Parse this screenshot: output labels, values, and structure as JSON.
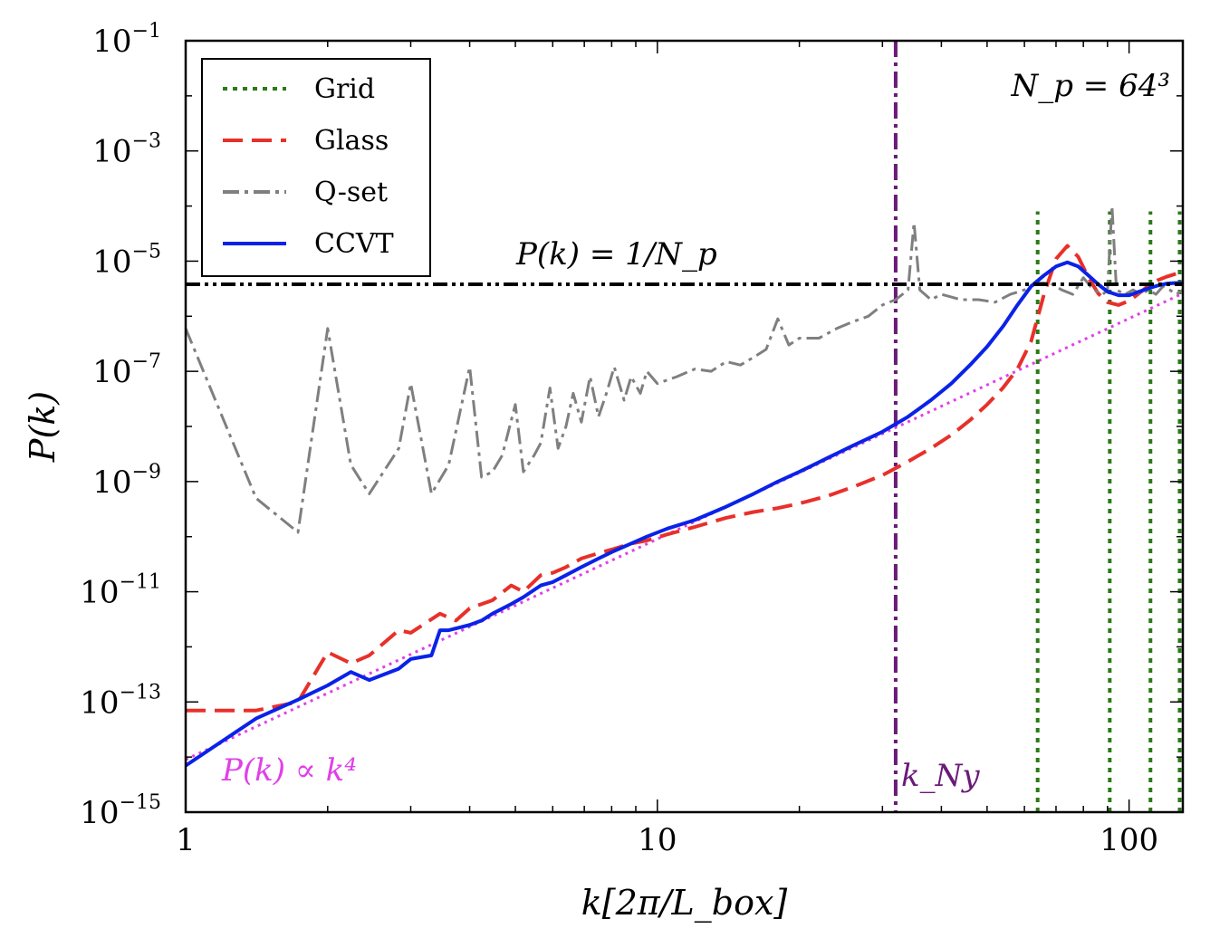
{
  "chart_data": {
    "type": "line",
    "xlabel": "k[2π/L_box]",
    "ylabel": "P(k)",
    "xscale": "log",
    "yscale": "log",
    "xlim": [
      1,
      130
    ],
    "ylim": [
      1e-15,
      0.1
    ],
    "grid": false,
    "legend_position": "top-left",
    "x_ticks": [
      {
        "value": 1,
        "label": "1"
      },
      {
        "value": 10,
        "label": "10"
      },
      {
        "value": 100,
        "label": "100"
      }
    ],
    "y_ticks": [
      {
        "value": 1e-15,
        "base": "10",
        "exp": "−15"
      },
      {
        "value": 1e-13,
        "base": "10",
        "exp": "−13"
      },
      {
        "value": 1e-11,
        "base": "10",
        "exp": "−11"
      },
      {
        "value": 1e-09,
        "base": "10",
        "exp": "−9"
      },
      {
        "value": 1e-07,
        "base": "10",
        "exp": "−7"
      },
      {
        "value": 1e-05,
        "base": "10",
        "exp": "−5"
      },
      {
        "value": 0.001,
        "base": "10",
        "exp": "−3"
      },
      {
        "value": 0.1,
        "base": "10",
        "exp": "−1"
      }
    ],
    "annotations": {
      "np_label": "N_p = 64³",
      "shot_noise_label": "P(k) = 1/N_p",
      "k4_label": "P(k) ∝ k⁴",
      "nyquist_label": "k_Ny"
    },
    "colors": {
      "grid": "#2a7a18",
      "glass": "#e8302a",
      "qset": "#7f7f7f",
      "ccvt": "#0a22e8",
      "k4": "#e040e8",
      "nyquist": "#6a1a78",
      "shot_noise": "#000000"
    },
    "shot_noise_level": 3.8e-06,
    "nyquist_k": 32,
    "grid_spikes": [
      64,
      91,
      111,
      128
    ],
    "k4_reference": {
      "name": "P(k) ∝ k⁴",
      "x": [
        1,
        130
      ],
      "y": [
        9e-15,
        2.6e-06
      ]
    },
    "series": [
      {
        "name": "Grid",
        "style": "dotted",
        "x": [],
        "y": []
      },
      {
        "name": "Glass",
        "style": "dashed",
        "x": [
          1,
          1.41,
          1.73,
          2.0,
          2.24,
          2.45,
          2.83,
          3.0,
          3.46,
          3.74,
          4.0,
          4.47,
          4.9,
          5.2,
          5.66,
          6.0,
          6.4,
          6.9,
          7.5,
          8.1,
          8.8,
          9.5,
          10.5,
          12,
          14,
          16,
          18,
          20,
          23,
          26,
          30,
          34,
          38,
          42,
          46,
          50,
          54,
          58,
          62,
          66,
          70,
          74,
          78,
          82,
          86,
          90,
          95,
          100,
          105,
          110,
          115,
          120,
          125,
          130
        ],
        "y": [
          7e-14,
          7e-14,
          1e-13,
          8e-13,
          5e-13,
          7e-13,
          2e-12,
          1.8e-12,
          4e-12,
          3e-12,
          5e-12,
          7e-12,
          1.3e-11,
          1e-11,
          2e-11,
          2.2e-11,
          2.8e-11,
          4e-11,
          5e-11,
          6e-11,
          7.5e-11,
          8.5e-11,
          1.1e-10,
          1.5e-10,
          2.2e-10,
          2.8e-10,
          3.3e-10,
          4e-10,
          5.5e-10,
          8e-10,
          1.3e-09,
          2.3e-09,
          4e-09,
          7e-09,
          1.3e-08,
          2.5e-08,
          5e-08,
          1.1e-07,
          3.5e-07,
          2.5e-06,
          1.1e-05,
          1.9e-05,
          1.2e-05,
          5e-06,
          2.6e-06,
          1.8e-06,
          1.6e-06,
          1.9e-06,
          2.6e-06,
          3.6e-06,
          4.5e-06,
          5.2e-06,
          5.8e-06,
          6.2e-06
        ]
      },
      {
        "name": "Q-set",
        "style": "dashdot",
        "x": [
          1,
          1.41,
          1.73,
          2.0,
          2.24,
          2.45,
          2.83,
          3.0,
          3.32,
          3.61,
          4.0,
          4.24,
          4.47,
          4.69,
          5.0,
          5.2,
          5.48,
          5.66,
          5.92,
          6.16,
          6.4,
          6.63,
          6.9,
          7.2,
          7.5,
          7.8,
          8.1,
          8.5,
          8.8,
          9.2,
          9.5,
          10,
          11,
          12,
          13,
          14,
          15,
          16,
          17,
          18,
          19,
          20,
          22,
          24,
          26,
          28,
          30,
          32,
          34,
          35,
          36,
          38,
          40,
          44,
          48,
          52,
          56,
          60,
          64,
          68,
          72,
          76,
          80,
          84,
          88,
          90,
          92,
          94,
          98,
          102,
          106,
          110,
          114,
          118,
          122,
          126,
          130
        ],
        "y": [
          6e-07,
          5e-10,
          1.2e-10,
          6e-07,
          2e-09,
          6e-10,
          4e-09,
          6e-08,
          6e-10,
          2e-09,
          1.2e-07,
          1.2e-09,
          1.5e-09,
          3e-09,
          2.5e-08,
          1.5e-09,
          3e-09,
          5e-09,
          5e-08,
          4e-09,
          1e-08,
          4e-08,
          1.2e-08,
          8e-08,
          1.5e-08,
          4e-08,
          1.2e-07,
          3e-08,
          8e-08,
          4e-08,
          1e-07,
          6e-08,
          8e-08,
          1.1e-07,
          1e-07,
          1.5e-07,
          1.3e-07,
          1.8e-07,
          2.5e-07,
          9e-07,
          3e-07,
          4e-07,
          4e-07,
          6e-07,
          8e-07,
          1e-06,
          1.6e-06,
          2e-06,
          3e-06,
          5e-05,
          3e-06,
          2e-06,
          2.5e-06,
          2e-06,
          2e-06,
          1.8e-06,
          2.5e-06,
          3e-06,
          4e-06,
          4e-06,
          3e-06,
          2.5e-06,
          5e-06,
          3e-06,
          2.5e-06,
          3e-06,
          0.0001,
          3e-06,
          2.5e-06,
          3e-06,
          2.5e-06,
          3e-06,
          2.5e-06,
          3.5e-06,
          3e-06,
          2.5e-06,
          3e-06
        ]
      },
      {
        "name": "CCVT",
        "style": "solid",
        "x": [
          1,
          1.41,
          1.73,
          2.0,
          2.24,
          2.45,
          2.83,
          3.0,
          3.32,
          3.46,
          3.61,
          4.0,
          4.24,
          4.47,
          4.9,
          5.2,
          5.66,
          6.0,
          6.4,
          6.9,
          7.5,
          8.1,
          8.8,
          9.5,
          10.5,
          12,
          14,
          16,
          18,
          20,
          23,
          26,
          30,
          34,
          38,
          42,
          46,
          50,
          54,
          58,
          62,
          66,
          70,
          74,
          78,
          82,
          86,
          90,
          95,
          100,
          105,
          110,
          115,
          120,
          125,
          130
        ],
        "y": [
          7e-15,
          5e-14,
          1.1e-13,
          2e-13,
          3.5e-13,
          2.5e-13,
          4e-13,
          6e-13,
          7e-13,
          2e-12,
          2e-12,
          2.5e-12,
          3e-12,
          4e-12,
          6e-12,
          8e-12,
          1.3e-11,
          1.5e-11,
          2e-11,
          2.8e-11,
          4e-11,
          5.5e-11,
          7.5e-11,
          1e-10,
          1.4e-10,
          2e-10,
          3.5e-10,
          6e-10,
          1e-09,
          1.5e-09,
          2.7e-09,
          4.5e-09,
          8e-09,
          1.5e-08,
          3e-08,
          6e-08,
          1.3e-07,
          2.8e-07,
          6.5e-07,
          1.6e-06,
          3.5e-06,
          5.5e-06,
          8e-06,
          9.5e-06,
          8e-06,
          5.5e-06,
          3.8e-06,
          2.8e-06,
          2.4e-06,
          2.4e-06,
          2.8e-06,
          3.2e-06,
          3.6e-06,
          3.9e-06,
          4e-06,
          4e-06
        ]
      }
    ]
  }
}
